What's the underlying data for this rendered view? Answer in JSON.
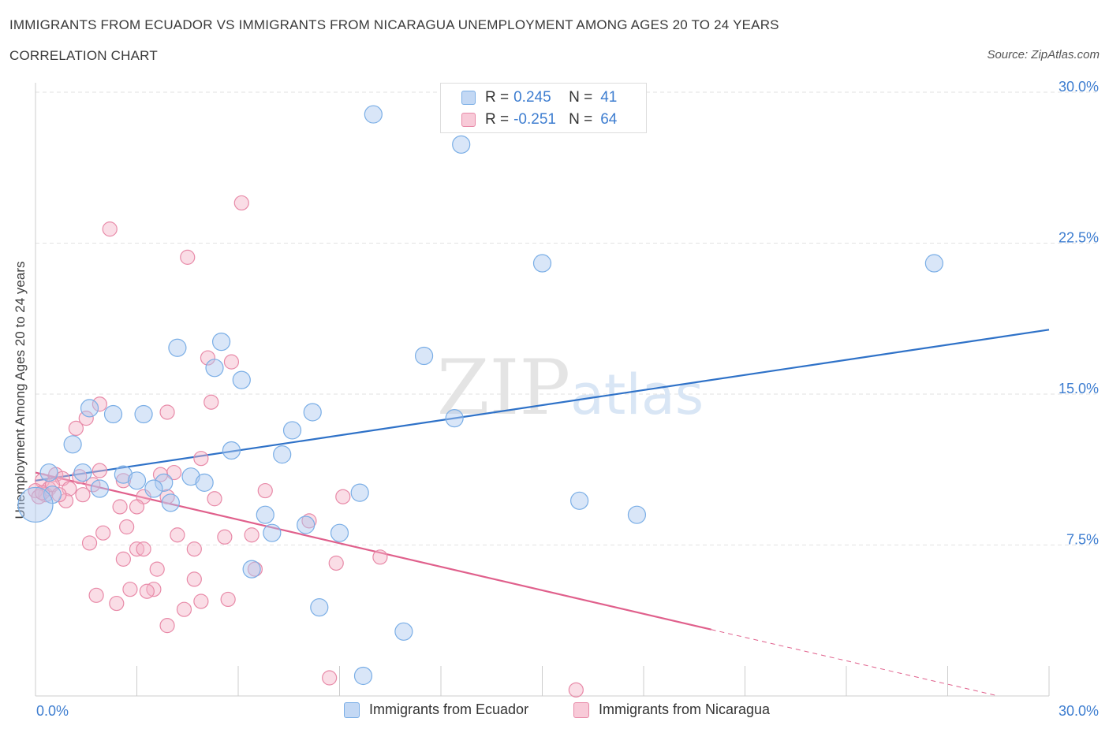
{
  "chart_data": {
    "type": "scatter",
    "title": "IMMIGRANTS FROM ECUADOR VS IMMIGRANTS FROM NICARAGUA UNEMPLOYMENT AMONG AGES 20 TO 24 YEARS",
    "subtitle": "CORRELATION CHART",
    "source": "Source: ZipAtlas.com",
    "ylabel": "Unemployment Among Ages 20 to 24 years",
    "xlim": [
      0,
      30
    ],
    "ylim": [
      0,
      30
    ],
    "x_tick_labels": [
      "0.0%",
      "30.0%"
    ],
    "y_tick_values": [
      7.5,
      15,
      22.5,
      30
    ],
    "y_tick_labels": [
      "7.5%",
      "15.0%",
      "22.5%",
      "30.0%"
    ],
    "grid": true,
    "watermark": "ZIPatlas",
    "legend_position": "top-center",
    "series": [
      {
        "name": "Immigrants from Ecuador",
        "color": "#7aaee6",
        "fill": "rgba(170, 200, 240, 0.45)",
        "line_color": "#2f72c8",
        "r_label": "R =",
        "r_value": "0.245",
        "n_label": "N =",
        "n_value": "41",
        "trend": {
          "x0": 0,
          "y0": 10.7,
          "x1": 30,
          "y1": 18.2
        },
        "points": [
          [
            10.0,
            28.9
          ],
          [
            12.6,
            27.4
          ],
          [
            15.0,
            21.5
          ],
          [
            26.6,
            21.5
          ],
          [
            4.2,
            17.3
          ],
          [
            5.5,
            17.6
          ],
          [
            5.3,
            16.3
          ],
          [
            6.1,
            15.7
          ],
          [
            11.5,
            16.9
          ],
          [
            1.6,
            14.3
          ],
          [
            2.3,
            14.0
          ],
          [
            3.2,
            14.0
          ],
          [
            8.2,
            14.1
          ],
          [
            12.4,
            13.8
          ],
          [
            7.6,
            13.2
          ],
          [
            1.1,
            12.5
          ],
          [
            5.8,
            12.2
          ],
          [
            7.3,
            12.0
          ],
          [
            0.4,
            11.1
          ],
          [
            1.4,
            11.1
          ],
          [
            2.6,
            11.0
          ],
          [
            3.0,
            10.7
          ],
          [
            4.6,
            10.9
          ],
          [
            3.8,
            10.6
          ],
          [
            5.0,
            10.6
          ],
          [
            1.9,
            10.3
          ],
          [
            3.5,
            10.3
          ],
          [
            0.5,
            10.0
          ],
          [
            9.6,
            10.1
          ],
          [
            16.1,
            9.7
          ],
          [
            4.0,
            9.6
          ],
          [
            6.8,
            9.0
          ],
          [
            17.8,
            9.0
          ],
          [
            8.0,
            8.5
          ],
          [
            7.0,
            8.1
          ],
          [
            9.0,
            8.1
          ],
          [
            6.4,
            6.3
          ],
          [
            8.4,
            4.4
          ],
          [
            10.9,
            3.2
          ],
          [
            9.7,
            1.0
          ],
          [
            0.0,
            9.5
          ]
        ],
        "point_sizes": [
          11,
          11,
          11,
          11,
          11,
          11,
          11,
          11,
          11,
          11,
          11,
          11,
          11,
          11,
          11,
          11,
          11,
          11,
          11,
          11,
          11,
          11,
          11,
          11,
          11,
          11,
          11,
          11,
          11,
          11,
          11,
          11,
          11,
          11,
          11,
          11,
          11,
          11,
          11,
          11,
          22
        ]
      },
      {
        "name": "Immigrants from Nicaragua",
        "color": "#e88aa8",
        "fill": "rgba(245, 180, 200, 0.45)",
        "line_color": "#e0608c",
        "r_label": "R =",
        "r_value": "-0.251",
        "n_label": "N =",
        "n_value": "64",
        "trend": {
          "x0": 0,
          "y0": 11.1,
          "x1": 20.0,
          "y1": 3.3
        },
        "trend_dashed": {
          "x0": 20.0,
          "y0": 3.3,
          "x1": 28.5,
          "y1": 0.0
        },
        "points": [
          [
            6.1,
            24.5
          ],
          [
            2.2,
            23.2
          ],
          [
            4.5,
            21.8
          ],
          [
            5.1,
            16.8
          ],
          [
            5.8,
            16.6
          ],
          [
            5.2,
            14.6
          ],
          [
            1.9,
            14.5
          ],
          [
            3.9,
            14.1
          ],
          [
            1.5,
            13.8
          ],
          [
            1.2,
            13.3
          ],
          [
            4.9,
            11.8
          ],
          [
            1.9,
            11.2
          ],
          [
            4.1,
            11.1
          ],
          [
            0.6,
            11.0
          ],
          [
            1.3,
            10.9
          ],
          [
            3.7,
            11.0
          ],
          [
            0.2,
            10.7
          ],
          [
            0.8,
            10.8
          ],
          [
            1.7,
            10.5
          ],
          [
            2.6,
            10.7
          ],
          [
            0.4,
            10.3
          ],
          [
            1.0,
            10.3
          ],
          [
            6.8,
            10.2
          ],
          [
            0.3,
            10.0
          ],
          [
            1.4,
            10.0
          ],
          [
            3.2,
            9.9
          ],
          [
            3.9,
            9.9
          ],
          [
            5.3,
            9.8
          ],
          [
            9.1,
            9.9
          ],
          [
            0.9,
            9.7
          ],
          [
            2.5,
            9.4
          ],
          [
            3.0,
            9.4
          ],
          [
            8.1,
            8.7
          ],
          [
            2.7,
            8.4
          ],
          [
            2.0,
            8.1
          ],
          [
            4.2,
            8.0
          ],
          [
            6.4,
            8.0
          ],
          [
            5.6,
            7.9
          ],
          [
            1.6,
            7.6
          ],
          [
            3.0,
            7.3
          ],
          [
            3.2,
            7.3
          ],
          [
            4.7,
            7.3
          ],
          [
            2.6,
            6.8
          ],
          [
            10.2,
            6.9
          ],
          [
            8.9,
            6.6
          ],
          [
            3.6,
            6.3
          ],
          [
            6.5,
            6.3
          ],
          [
            4.7,
            5.8
          ],
          [
            2.8,
            5.3
          ],
          [
            3.5,
            5.3
          ],
          [
            3.3,
            5.2
          ],
          [
            1.8,
            5.0
          ],
          [
            5.7,
            4.8
          ],
          [
            4.9,
            4.7
          ],
          [
            2.4,
            4.6
          ],
          [
            4.4,
            4.3
          ],
          [
            3.9,
            3.5
          ],
          [
            8.7,
            0.9
          ],
          [
            16.0,
            0.3
          ],
          [
            0.0,
            10.2
          ],
          [
            0.1,
            9.9
          ],
          [
            0.2,
            10.1
          ],
          [
            0.5,
            10.5
          ],
          [
            0.7,
            10.0
          ]
        ]
      }
    ]
  }
}
